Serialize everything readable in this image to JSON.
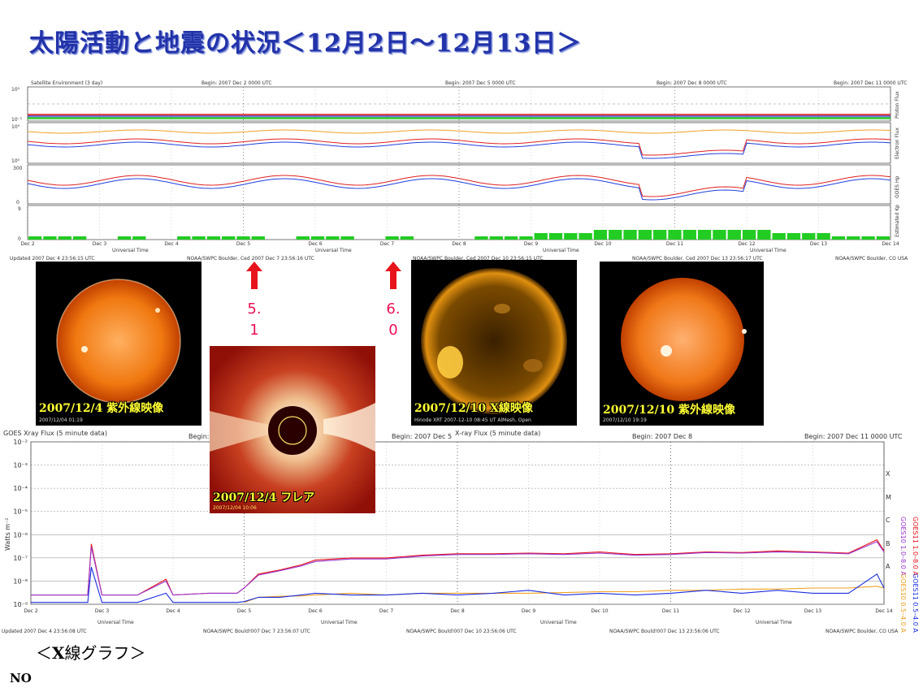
{
  "title": "太陽活動と地震の状況＜12月2日～12月13日＞",
  "top_chart": {
    "header_left": "Satellite Environment (3 day)",
    "header_begins": [
      "Begin: 2007 Dec 2 0000 UTC",
      "Begin: 2007 Dec 5 0000 UTC",
      "Begin: 2007 Dec 8 0000 UTC",
      "Begin: 2007 Dec 11 0000 UTC"
    ],
    "right_labels": [
      "Proton Flux",
      "Electron Flux",
      "GOES Hp",
      "Estimated Kp"
    ],
    "y_ticks_proton": [
      "10⁵",
      "10⁻¹"
    ],
    "y_ticks_electron": [
      "10⁵",
      "10⁰"
    ],
    "y_ticks_hp": [
      "300",
      "0"
    ],
    "y_ticks_kp": [
      "9",
      "0"
    ],
    "xlabel": "Universal Time",
    "footer": [
      "Updated 2007 Dec  4 23:56:15 UTC",
      "NOAA/SWPC Boulder, Ced 2007 Dec  7 23:56:16 UTC",
      "NOAA/SWPC Boulder, Ced 2007 Dec 10 23:56:15 UTC",
      "NOAA/SWPC Boulder, Ced 2007 Dec 13 23:56:17 UTC",
      "NOAA/SWPC Boulder, CO USA"
    ]
  },
  "events": [
    {
      "label_top": "5.",
      "label_bottom": "1",
      "arrow_color": "#e8141c"
    },
    {
      "label_top": "6.",
      "label_bottom": "0",
      "arrow_color": "#e8141c"
    }
  ],
  "images": {
    "uv1": {
      "caption": "2007/12/4 紫外線映像",
      "stamp": "2007/12/04 01:19"
    },
    "flare": {
      "caption": "2007/12/4 フレア",
      "stamp": "2007/12/04  10:06"
    },
    "xray": {
      "caption": "2007/12/10 X線映像",
      "stamp": "Hinode XRT  2007-12-10 08:45 UT  AlMesh, Open"
    },
    "uv2": {
      "caption": "2007/12/10 紫外線映像",
      "stamp": "2007/12/10 19:19"
    }
  },
  "xray_chart_text": {
    "header_left": "GOES Xray Flux (5 minute data)",
    "header_begins": [
      "Begin: 2007 Dec 2",
      "Begin: 2007 Dec 5",
      "Begin: 2007 Dec 8",
      "Begin: 2007 Dec 11 0000 UTC"
    ],
    "header_mid": "X-ray Flux (5 minute data)",
    "ylabel": "Watts m⁻²",
    "y_ticks": [
      "10⁻²",
      "10⁻³",
      "10⁻⁴",
      "10⁻⁵",
      "10⁻⁶",
      "10⁻⁷",
      "10⁻⁸",
      "10⁻⁹"
    ],
    "class_letters": [
      "X",
      "M",
      "C",
      "B",
      "A"
    ],
    "legend": [
      "GOES10 1.0–8.0 A",
      "GOES11 1.0–8.0 A",
      "GOES10 0.5–4.0 A",
      "GOES11 0.5–4.0 A"
    ],
    "footer": [
      "Updated 2007 Dec  4 23:56:08 UTC",
      "NOAA/SWPC Bould!007 Dec  7 23:56:07 UTC",
      "NOAA/SWPC Bould!007 Dec 10 23:56:06 UTC",
      "NOAA/SWPC Bould!007 Dec 13 23:56:06 UTC",
      "NOAA/SWPC Boulder, CO USA"
    ]
  },
  "xcaption_pre": "＜",
  "xcaption_bold": "X",
  "xcaption_post": "線グラフ＞",
  "footer_note": "NO",
  "chart_data": {
    "type": "line",
    "title": "GOES Xray Flux (5 minute data)",
    "xlabel": "Universal Time",
    "ylabel": "Watts m⁻²",
    "yscale": "log",
    "ylim": [
      1e-09,
      0.01
    ],
    "x_ticks": [
      "Dec 2",
      "Dec 3",
      "Dec 4",
      "Dec 5",
      "Dec 6",
      "Dec 7",
      "Dec 8",
      "Dec 9",
      "Dec 10",
      "Dec 11",
      "Dec 12",
      "Dec 13",
      "Dec 14"
    ],
    "xlim": [
      2,
      14
    ],
    "x": [
      2.0,
      2.5,
      2.8,
      2.85,
      3.0,
      3.5,
      3.9,
      4.0,
      4.5,
      4.9,
      5.0,
      5.2,
      5.5,
      5.8,
      6.0,
      6.5,
      7.0,
      7.5,
      8.0,
      8.5,
      9.0,
      9.5,
      10.0,
      10.5,
      11.0,
      11.5,
      12.0,
      12.5,
      13.0,
      13.5,
      13.9,
      14.0
    ],
    "series": [
      {
        "name": "GOES11 1.0–8.0 A",
        "color": "#e8141c",
        "values": [
          2.5e-09,
          2.5e-09,
          2.5e-09,
          4e-07,
          2.5e-09,
          2.5e-09,
          1.2e-08,
          2.5e-09,
          3e-09,
          3e-09,
          5e-09,
          2e-08,
          3e-08,
          5e-08,
          8e-08,
          1e-07,
          1e-07,
          1.3e-07,
          1.5e-07,
          1.5e-07,
          1.6e-07,
          1.5e-07,
          1.8e-07,
          1.4e-07,
          1.5e-07,
          1.8e-07,
          1.7e-07,
          2e-07,
          1.8e-07,
          1.6e-07,
          6e-07,
          2e-07
        ]
      },
      {
        "name": "GOES10 1.0–8.0 A",
        "color": "#9933cc",
        "values": [
          2.5e-09,
          2.5e-09,
          2.5e-09,
          3e-07,
          2.5e-09,
          2.5e-09,
          1e-08,
          2.5e-09,
          3e-09,
          3e-09,
          5e-09,
          1.8e-08,
          2.8e-08,
          4.5e-08,
          7e-08,
          9e-08,
          9e-08,
          1.2e-07,
          1.4e-07,
          1.4e-07,
          1.5e-07,
          1.4e-07,
          1.6e-07,
          1.3e-07,
          1.4e-07,
          1.7e-07,
          1.6e-07,
          1.8e-07,
          1.7e-07,
          1.5e-07,
          5e-07,
          1.8e-07
        ]
      },
      {
        "name": "GOES10 0.5–4.0 A",
        "color": "#f0a020",
        "values": [
          null,
          null,
          null,
          null,
          null,
          null,
          null,
          null,
          null,
          null,
          1.2e-09,
          2e-09,
          2.2e-09,
          2.3e-09,
          2.5e-09,
          3e-09,
          2.5e-09,
          3e-09,
          3e-09,
          3e-09,
          3e-09,
          3.2e-09,
          3.5e-09,
          3.5e-09,
          4e-09,
          4e-09,
          4.5e-09,
          4.5e-09,
          5e-09,
          5e-09,
          6e-09,
          5e-09
        ]
      },
      {
        "name": "GOES11 0.5–4.0 A",
        "color": "#1a2ee0",
        "values": [
          1.2e-09,
          1.2e-09,
          1.2e-09,
          4e-08,
          1.2e-09,
          1.2e-09,
          3e-09,
          1.2e-09,
          1.2e-09,
          1.2e-09,
          1.3e-09,
          2e-09,
          2e-09,
          2.5e-09,
          3e-09,
          2.5e-09,
          2.5e-09,
          3e-09,
          2.5e-09,
          3e-09,
          4e-09,
          2.5e-09,
          3e-09,
          2.5e-09,
          3e-09,
          4e-09,
          3e-09,
          4e-09,
          3e-09,
          3e-09,
          2e-08,
          5e-09
        ]
      }
    ]
  }
}
